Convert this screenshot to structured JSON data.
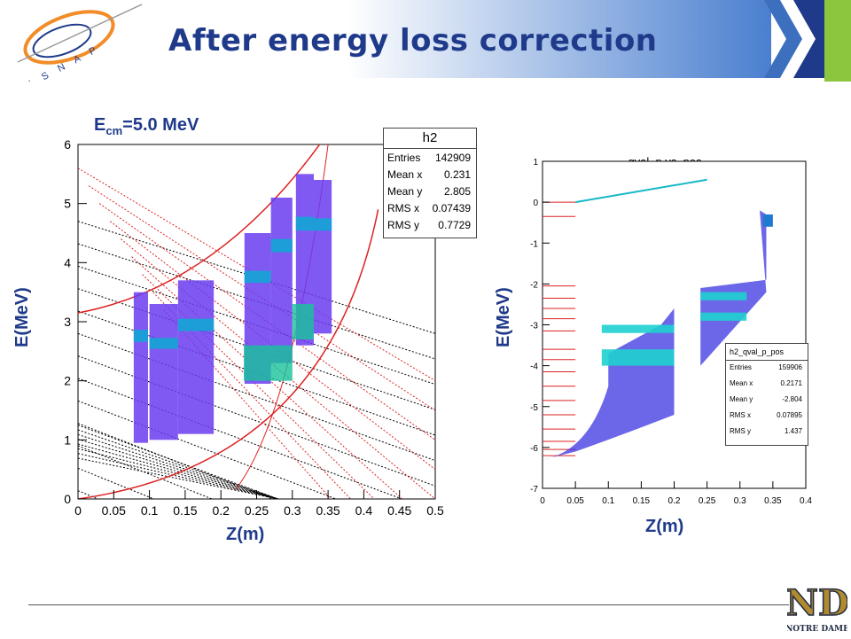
{
  "slide": {
    "title": "After energy loss correction",
    "ecm_label_main": "E",
    "ecm_label_sub": "cm",
    "ecm_label_value": "=5.0 MeV",
    "footer_logo_text": "NOTRE DAME",
    "header_logo_text": "I S N A P",
    "colors": {
      "title": "#1f3a8a",
      "banner_light": "#ffffff",
      "banner_dark": "#4a7fcf",
      "chevron": "#1f3a8a",
      "green_bar": "#8cc63f"
    }
  },
  "chart_data": [
    {
      "type": "heatmap",
      "name": "h2",
      "title": "",
      "xlabel": "Z(m)",
      "ylabel": "E(MeV)",
      "xlim": [
        0,
        0.5
      ],
      "ylim": [
        0,
        6
      ],
      "xticks": [
        "0",
        "0.05",
        "0.1",
        "0.15",
        "0.2",
        "0.25",
        "0.3",
        "0.35",
        "0.4",
        "0.45",
        "0.5"
      ],
      "yticks": [
        "0",
        "1",
        "2",
        "3",
        "4",
        "5",
        "6"
      ],
      "stats": {
        "header": "h2",
        "rows": [
          {
            "label": "Entries",
            "value": "142909"
          },
          {
            "label": "Mean x",
            "value": "0.231"
          },
          {
            "label": "Mean y",
            "value": "2.805"
          },
          {
            "label": "RMS x",
            "value": "0.07439"
          },
          {
            "label": "RMS y",
            "value": "0.7729"
          }
        ]
      },
      "legend_position": "top-right",
      "grid": false
    },
    {
      "type": "heatmap",
      "name": "h2_qval_p_pos",
      "title": "qval_p vs. pos",
      "xlabel": "Z(m)",
      "ylabel": "E(MeV)",
      "xlim": [
        0,
        0.4
      ],
      "ylim": [
        -7,
        1
      ],
      "xticks": [
        "0",
        "0.05",
        "0.1",
        "0.15",
        "0.2",
        "0.25",
        "0.3",
        "0.35",
        "0.4"
      ],
      "yticks": [
        "-7",
        "-6",
        "-5",
        "-4",
        "-3",
        "-2",
        "-1",
        "0",
        "1"
      ],
      "stats": {
        "header": "h2_qval_p_pos",
        "rows": [
          {
            "label": "Entries",
            "value": "159906"
          },
          {
            "label": "Mean x",
            "value": "0.2171"
          },
          {
            "label": "Mean y",
            "value": "-2.804"
          },
          {
            "label": "RMS x",
            "value": "0.07895"
          },
          {
            "label": "RMS y",
            "value": "1.437"
          }
        ]
      },
      "legend_position": "bottom-right",
      "grid": false
    }
  ]
}
